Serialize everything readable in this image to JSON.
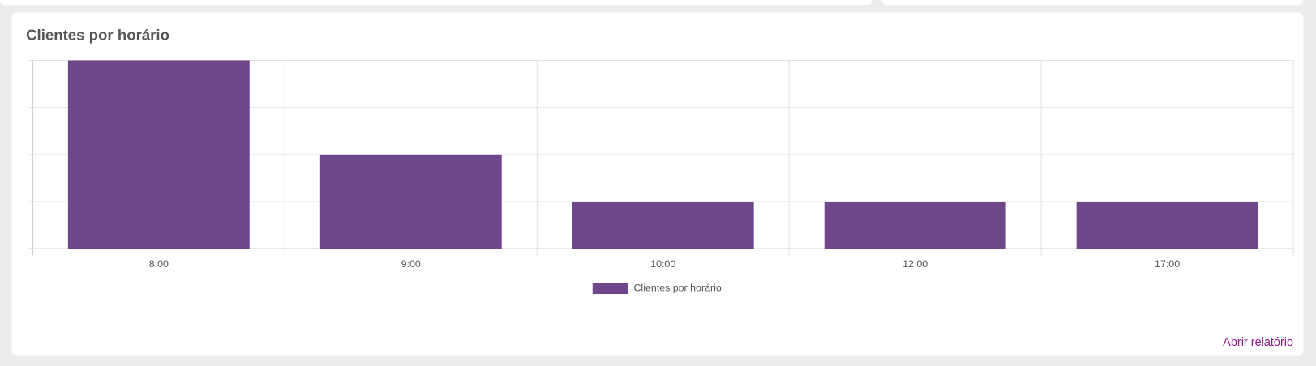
{
  "title": "Clientes por horário",
  "chart_data": {
    "type": "bar",
    "categories": [
      "8:00",
      "9:00",
      "10:00",
      "12:00",
      "17:00"
    ],
    "series": [
      {
        "name": "Clientes por horário",
        "color": "#6e468a",
        "values": [
          4,
          2,
          1,
          1,
          1
        ]
      }
    ],
    "ylim": [
      0,
      4
    ],
    "yticks": [
      0,
      1,
      2,
      3,
      4
    ],
    "grid": true,
    "legend": "bottom"
  },
  "link": "Abrir relatório"
}
